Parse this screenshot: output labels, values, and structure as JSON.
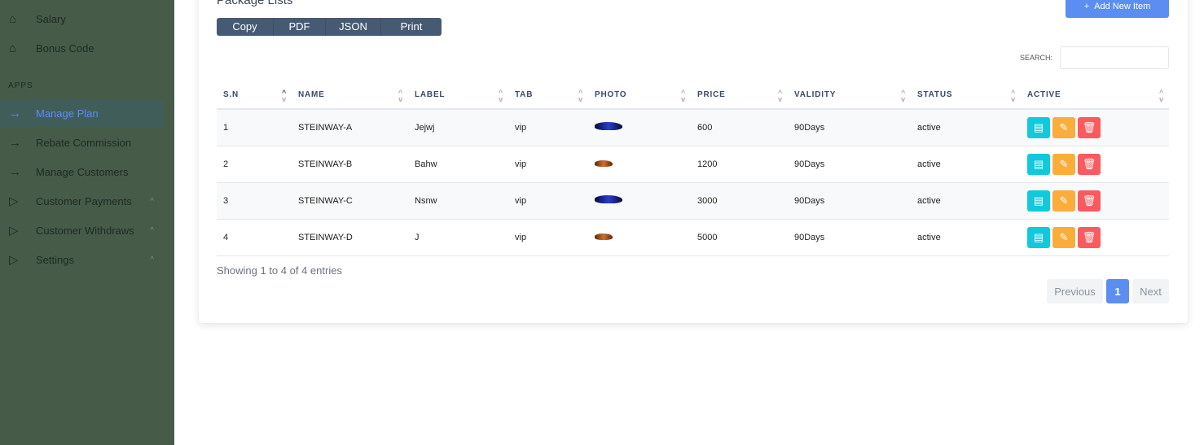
{
  "sidebar": {
    "items": [
      {
        "label": "Salary",
        "icon": "home-icon"
      },
      {
        "label": "Bonus Code",
        "icon": "home-icon"
      }
    ],
    "section": "APPS",
    "apps": [
      {
        "label": "Manage Plan",
        "icon": "arrow-right-icon",
        "active": true
      },
      {
        "label": "Rebate Commission",
        "icon": "arrow-right-icon"
      },
      {
        "label": "Manage Customers",
        "icon": "arrow-right-icon"
      },
      {
        "label": "Customer Payments",
        "icon": "play-icon",
        "chevron": true
      },
      {
        "label": "Customer Withdraws",
        "icon": "play-icon",
        "chevron": true
      },
      {
        "label": "Settings",
        "icon": "play-icon",
        "chevron": true
      }
    ]
  },
  "main": {
    "title": "Package Lists",
    "export": [
      "Copy",
      "PDF",
      "JSON",
      "Print"
    ],
    "add_label": "Add New Item",
    "search_label": "SEARCH:",
    "search_value": "",
    "columns": [
      "S.N",
      "NAME",
      "LABEL",
      "TAB",
      "PHOTO",
      "PRICE",
      "VALIDITY",
      "STATUS",
      "ACTIVE"
    ],
    "rows": [
      {
        "sn": "1",
        "name": "STEINWAY-A",
        "label": "Jejwj",
        "tab": "vip",
        "photo": "blue-car",
        "price": "600",
        "validity": "90Days",
        "status": "active"
      },
      {
        "sn": "2",
        "name": "STEINWAY-B",
        "label": "Bahw",
        "tab": "vip",
        "photo": "orange-car",
        "price": "1200",
        "validity": "90Days",
        "status": "active"
      },
      {
        "sn": "3",
        "name": "STEINWAY-C",
        "label": "Nsnw",
        "tab": "vip",
        "photo": "blue-car",
        "price": "3000",
        "validity": "90Days",
        "status": "active"
      },
      {
        "sn": "4",
        "name": "STEINWAY-D",
        "label": "J",
        "tab": "vip",
        "photo": "orange-car",
        "price": "5000",
        "validity": "90Days",
        "status": "active"
      }
    ],
    "info": "Showing 1 to 4 of 4 entries",
    "pagination": {
      "previous": "Previous",
      "page": "1",
      "next": "Next"
    }
  },
  "colors": {
    "sidebar": "#475b49",
    "accent": "#5b8ef0",
    "view": "#12c9dc",
    "edit": "#fbad3c",
    "delete": "#fb5b5e"
  }
}
